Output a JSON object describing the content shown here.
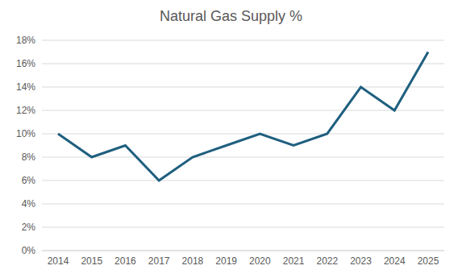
{
  "chart_data": {
    "type": "line",
    "title": "Natural Gas Supply %",
    "categories": [
      "2014",
      "2015",
      "2016",
      "2017",
      "2018",
      "2019",
      "2020",
      "2021",
      "2022",
      "2023",
      "2024",
      "2025"
    ],
    "values": [
      10,
      8,
      9,
      6,
      8,
      9,
      10,
      9,
      10,
      14,
      12,
      17
    ],
    "color": "#1f5f7f",
    "ylim": [
      0,
      18
    ],
    "yticks": [
      {
        "value": 0,
        "label": "0%"
      },
      {
        "value": 2,
        "label": "2%"
      },
      {
        "value": 4,
        "label": "4%"
      },
      {
        "value": 6,
        "label": "6%"
      },
      {
        "value": 8,
        "label": "8%"
      },
      {
        "value": 10,
        "label": "10%"
      },
      {
        "value": 12,
        "label": "12%"
      },
      {
        "value": 14,
        "label": "14%"
      },
      {
        "value": 16,
        "label": "16%"
      },
      {
        "value": 18,
        "label": "18%"
      }
    ],
    "grid": true
  }
}
